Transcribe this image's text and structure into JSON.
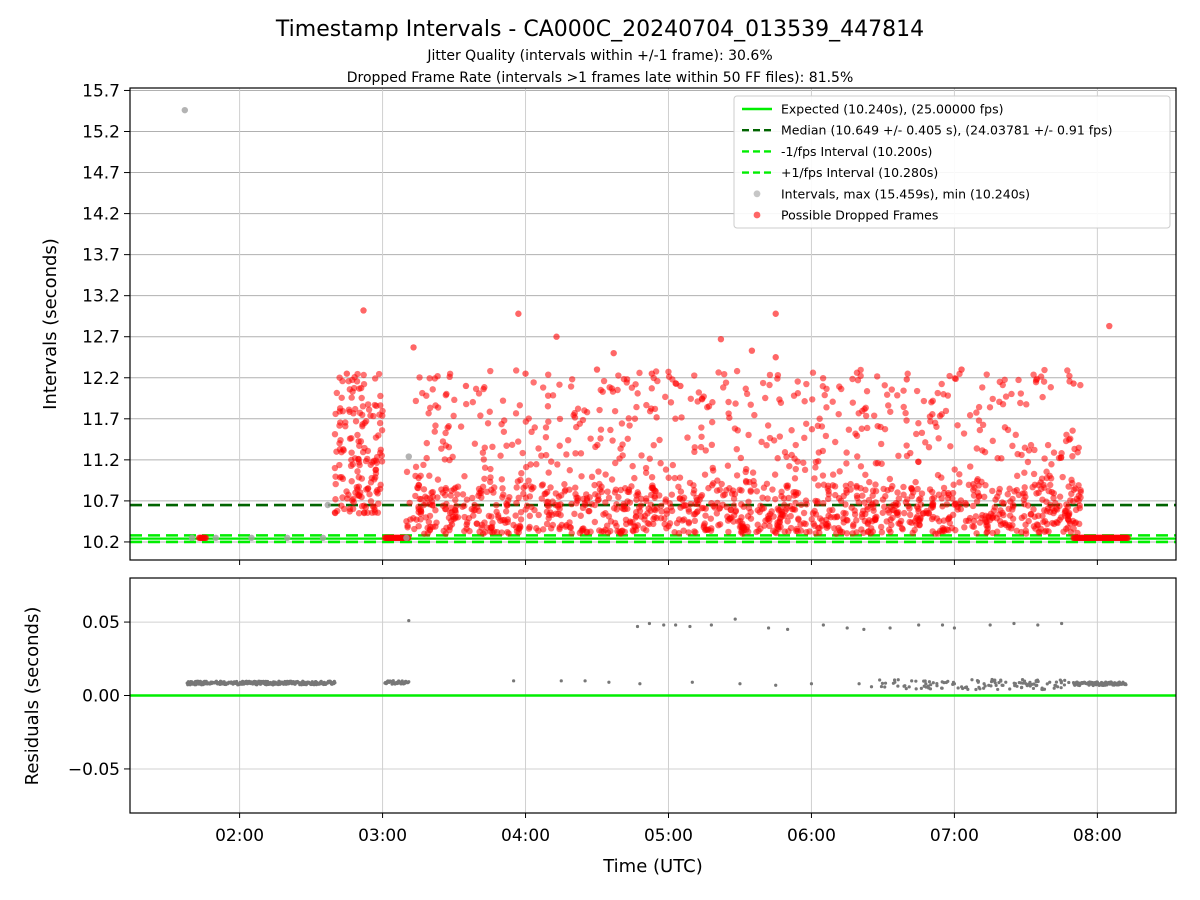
{
  "figure": {
    "title": "Timestamp Intervals - CA000C_20240704_013539_447814",
    "subtitle_1": "Jitter Quality (intervals within +/-1 frame): 30.6%",
    "subtitle_2": "Dropped Frame Rate (intervals >1 frames late within 50 FF files): 81.5%",
    "xlabel": "Time (UTC)"
  },
  "chart_data": [
    {
      "type": "scatter",
      "ylabel": "Intervals (seconds)",
      "ylim": [
        9.98,
        15.73
      ],
      "xlim": [
        "01:14",
        "08:33"
      ],
      "x_ticks": [
        "02:00",
        "03:00",
        "04:00",
        "05:00",
        "06:00",
        "07:00",
        "08:00"
      ],
      "y_ticks": [
        "10.2",
        "10.7",
        "11.2",
        "11.7",
        "12.2",
        "12.7",
        "13.2",
        "13.7",
        "14.2",
        "14.7",
        "15.2",
        "15.7"
      ],
      "grid": true,
      "legend_position": "top-right",
      "lines": [
        {
          "name": "Expected (10.240s), (25.00000 fps)",
          "y": 10.24,
          "style": "solid",
          "color": "#00ee00"
        },
        {
          "name": "Median (10.649 +/- 0.405 s), (24.03781 +/- 0.91 fps)",
          "y": 10.649,
          "style": "dashed",
          "color": "#006400"
        },
        {
          "name": "-1/fps Interval (10.200s)",
          "y": 10.2,
          "style": "dashed",
          "color": "#00ee00"
        },
        {
          "name": "+1/fps Interval (10.280s)",
          "y": 10.28,
          "style": "dashed",
          "color": "#00ee00"
        }
      ],
      "series": [
        {
          "name": "Intervals, max (15.459s), min (10.240s)",
          "color": "#a0a0a0",
          "points": [
            [
              "01:37",
              15.46
            ],
            [
              "01:40",
              10.25
            ],
            [
              "01:50",
              10.25
            ],
            [
              "02:05",
              10.25
            ],
            [
              "02:20",
              10.25
            ],
            [
              "02:35",
              10.25
            ],
            [
              "02:37",
              10.65
            ],
            [
              "03:10",
              10.25
            ],
            [
              "03:11",
              11.24
            ]
          ]
        },
        {
          "name": "Possible Dropped Frames",
          "color": "#ff0000",
          "generated_from": {
            "bands": [
              {
                "from": "02:40",
                "to": "03:00",
                "low": 10.55,
                "high": 12.25
              },
              {
                "from": "03:10",
                "to": "07:53",
                "low": 10.3,
                "high": 12.3
              }
            ],
            "baseline": {
              "y": 10.25,
              "ranges": [
                [
                  "01:43",
                  "01:46"
                ],
                [
                  "03:01",
                  "03:11"
                ],
                [
                  "07:50",
                  "08:13"
                ]
              ]
            }
          },
          "points": [
            [
              "02:52",
              13.02
            ],
            [
              "03:13",
              12.57
            ],
            [
              "03:57",
              12.98
            ],
            [
              "04:13",
              12.7
            ],
            [
              "04:37",
              12.5
            ],
            [
              "05:22",
              12.67
            ],
            [
              "05:35",
              12.53
            ],
            [
              "05:45",
              12.98
            ],
            [
              "05:45",
              12.45
            ],
            [
              "06:40",
              12.18
            ],
            [
              "07:03",
              12.3
            ],
            [
              "08:05",
              12.83
            ],
            [
              "04:30",
              12.3
            ],
            [
              "04:53",
              12.25
            ],
            [
              "05:05",
              12.1
            ],
            [
              "07:50",
              12.13
            ],
            [
              "02:45",
              12.25
            ],
            [
              "03:35",
              12.1
            ],
            [
              "04:00",
              12.25
            ]
          ]
        }
      ]
    },
    {
      "type": "scatter",
      "ylabel": "Residuals (seconds)",
      "ylim": [
        -0.08,
        0.08
      ],
      "xlim": [
        "01:14",
        "08:33"
      ],
      "y_ticks": [
        "0.05",
        "0.00",
        "−0.05"
      ],
      "grid": true,
      "zero_line": {
        "y": 0.0,
        "color": "#00ee00"
      },
      "series": [
        {
          "name": "",
          "color": "#777777",
          "generated_from": {
            "dense_bands": [
              {
                "from": "01:38",
                "to": "02:40",
                "y": 0.0085
              },
              {
                "from": "03:01",
                "to": "03:11",
                "y": 0.009
              },
              {
                "from": "07:50",
                "to": "08:12",
                "y": 0.008
              }
            ]
          },
          "points": [
            [
              "03:11",
              0.051
            ],
            [
              "04:47",
              0.047
            ],
            [
              "04:52",
              0.049
            ],
            [
              "04:58",
              0.048
            ],
            [
              "05:03",
              0.048
            ],
            [
              "05:09",
              0.047
            ],
            [
              "05:18",
              0.048
            ],
            [
              "05:28",
              0.052
            ],
            [
              "05:42",
              0.046
            ],
            [
              "05:50",
              0.045
            ],
            [
              "06:05",
              0.048
            ],
            [
              "06:15",
              0.046
            ],
            [
              "06:22",
              0.045
            ],
            [
              "06:33",
              0.046
            ],
            [
              "06:45",
              0.048
            ],
            [
              "06:55",
              0.048
            ],
            [
              "07:00",
              0.046
            ],
            [
              "07:15",
              0.048
            ],
            [
              "07:25",
              0.049
            ],
            [
              "07:35",
              0.048
            ],
            [
              "07:45",
              0.049
            ],
            [
              "03:55",
              0.01
            ],
            [
              "04:15",
              0.01
            ],
            [
              "04:25",
              0.01
            ],
            [
              "04:35",
              0.009
            ],
            [
              "04:48",
              0.008
            ],
            [
              "05:10",
              0.009
            ],
            [
              "05:30",
              0.008
            ],
            [
              "05:45",
              0.007
            ],
            [
              "06:00",
              0.008
            ],
            [
              "06:20",
              0.008
            ],
            [
              "06:35",
              0.009
            ],
            [
              "06:48",
              0.008
            ],
            [
              "07:00",
              0.008
            ],
            [
              "07:10",
              0.009
            ],
            [
              "07:20",
              0.007
            ],
            [
              "07:30",
              0.008
            ],
            [
              "07:40",
              0.009
            ]
          ]
        }
      ]
    }
  ]
}
